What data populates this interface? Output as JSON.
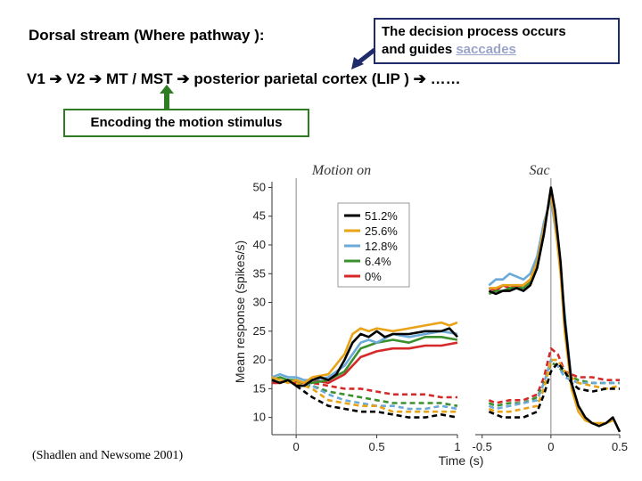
{
  "header": {
    "dorsal_title": "Dorsal stream (Where pathway ):",
    "decision_line1": "The decision process occurs",
    "decision_line2_prefix": "and guides ",
    "decision_link": "saccades"
  },
  "pathway": {
    "items": [
      "V1",
      "V2",
      "MT / MST",
      "posterior parietal cortex (LIP )",
      "……"
    ]
  },
  "encoding_label": "Encoding the motion stimulus",
  "citation": "(Shadlen and Newsome 2001)",
  "colors": {
    "box_border": "#1f2b6b",
    "encode_border": "#2e7d22",
    "arrow_green": "#2e7d22",
    "arrow_navy": "#1f2b6b"
  },
  "chart_data": {
    "type": "line",
    "panels": [
      {
        "title": "Motion on",
        "xlim": [
          -0.15,
          1.0
        ],
        "xticks": [
          "0",
          "0.5",
          "1"
        ],
        "xtick_values": [
          0,
          0.5,
          1
        ]
      },
      {
        "title": "Sac",
        "xlim": [
          -0.55,
          0.5
        ],
        "xticks": [
          "-0.5",
          "0",
          "0.5"
        ],
        "xtick_values": [
          -0.5,
          0,
          0.5
        ]
      }
    ],
    "ylabel": "Mean response (spikes/s)",
    "xlabel": "Time (s)",
    "ylim": [
      7,
      51
    ],
    "yticks": [
      10,
      15,
      20,
      25,
      30,
      35,
      40,
      45,
      50
    ],
    "legend_position": "top-left of first panel",
    "series": [
      {
        "name": "51.2%",
        "color": "#000000",
        "in_solid": [
          [
            -0.15,
            16.5
          ],
          [
            -0.1,
            16
          ],
          [
            -0.05,
            16.5
          ],
          [
            0,
            15.5
          ],
          [
            0.05,
            15.5
          ],
          [
            0.1,
            16.5
          ],
          [
            0.15,
            17
          ],
          [
            0.2,
            16.5
          ],
          [
            0.25,
            17.5
          ],
          [
            0.3,
            20
          ],
          [
            0.35,
            23
          ],
          [
            0.4,
            24.5
          ],
          [
            0.45,
            24
          ],
          [
            0.5,
            25
          ],
          [
            0.55,
            24
          ],
          [
            0.6,
            24.5
          ],
          [
            0.7,
            24.5
          ],
          [
            0.8,
            25
          ],
          [
            0.9,
            25
          ],
          [
            0.95,
            25.5
          ],
          [
            1.0,
            24
          ]
        ],
        "in_dashed": [
          [
            0,
            15.5
          ],
          [
            0.05,
            14.5
          ],
          [
            0.1,
            13.5
          ],
          [
            0.2,
            12
          ],
          [
            0.3,
            11.5
          ],
          [
            0.4,
            11
          ],
          [
            0.5,
            11
          ],
          [
            0.6,
            10.5
          ],
          [
            0.7,
            10
          ],
          [
            0.8,
            10
          ],
          [
            0.9,
            10.5
          ],
          [
            1.0,
            10
          ]
        ],
        "sac_solid": [
          [
            -0.45,
            32
          ],
          [
            -0.4,
            31.5
          ],
          [
            -0.35,
            32
          ],
          [
            -0.3,
            32
          ],
          [
            -0.25,
            32.5
          ],
          [
            -0.2,
            32
          ],
          [
            -0.15,
            33
          ],
          [
            -0.1,
            36
          ],
          [
            -0.05,
            42
          ],
          [
            0,
            50
          ],
          [
            0.03,
            46
          ],
          [
            0.07,
            37
          ],
          [
            0.1,
            27
          ],
          [
            0.15,
            16
          ],
          [
            0.2,
            12
          ],
          [
            0.25,
            10
          ],
          [
            0.3,
            9
          ],
          [
            0.35,
            8.5
          ],
          [
            0.4,
            9
          ],
          [
            0.45,
            10
          ],
          [
            0.5,
            7.5
          ]
        ],
        "sac_dashed": [
          [
            -0.45,
            11
          ],
          [
            -0.4,
            10.5
          ],
          [
            -0.35,
            10
          ],
          [
            -0.3,
            10
          ],
          [
            -0.2,
            10
          ],
          [
            -0.1,
            11
          ],
          [
            -0.05,
            14
          ],
          [
            0,
            18
          ],
          [
            0.05,
            19.5
          ],
          [
            0.1,
            18
          ],
          [
            0.15,
            16
          ],
          [
            0.2,
            15
          ],
          [
            0.3,
            14.5
          ],
          [
            0.4,
            15
          ],
          [
            0.5,
            15
          ]
        ]
      },
      {
        "name": "25.6%",
        "color": "#e8a317",
        "in_solid": [
          [
            -0.15,
            17
          ],
          [
            -0.1,
            16.5
          ],
          [
            -0.05,
            16
          ],
          [
            0,
            16.5
          ],
          [
            0.05,
            16
          ],
          [
            0.1,
            17
          ],
          [
            0.2,
            17.5
          ],
          [
            0.3,
            21
          ],
          [
            0.35,
            24.5
          ],
          [
            0.4,
            25.5
          ],
          [
            0.45,
            25
          ],
          [
            0.5,
            25.5
          ],
          [
            0.6,
            25
          ],
          [
            0.7,
            25.5
          ],
          [
            0.8,
            26
          ],
          [
            0.9,
            26.5
          ],
          [
            0.95,
            26
          ],
          [
            1.0,
            26.5
          ]
        ],
        "in_dashed": [
          [
            0,
            16
          ],
          [
            0.1,
            15
          ],
          [
            0.2,
            13
          ],
          [
            0.3,
            12.5
          ],
          [
            0.4,
            12
          ],
          [
            0.5,
            12
          ],
          [
            0.6,
            11
          ],
          [
            0.7,
            11
          ],
          [
            0.8,
            11
          ],
          [
            0.9,
            11
          ],
          [
            1.0,
            11
          ]
        ],
        "sac_solid": [
          [
            -0.45,
            32.5
          ],
          [
            -0.4,
            32.5
          ],
          [
            -0.35,
            33
          ],
          [
            -0.3,
            33
          ],
          [
            -0.2,
            33
          ],
          [
            -0.15,
            34
          ],
          [
            -0.1,
            37
          ],
          [
            -0.05,
            43
          ],
          [
            0,
            49
          ],
          [
            0.03,
            44
          ],
          [
            0.07,
            35
          ],
          [
            0.1,
            25
          ],
          [
            0.15,
            15
          ],
          [
            0.2,
            11
          ],
          [
            0.25,
            9.5
          ],
          [
            0.3,
            9
          ],
          [
            0.4,
            9
          ],
          [
            0.45,
            9.5
          ]
        ],
        "sac_dashed": [
          [
            -0.45,
            11.5
          ],
          [
            -0.4,
            11
          ],
          [
            -0.3,
            11
          ],
          [
            -0.2,
            11.5
          ],
          [
            -0.1,
            12
          ],
          [
            -0.05,
            15
          ],
          [
            0,
            20
          ],
          [
            0.05,
            20
          ],
          [
            0.1,
            18
          ],
          [
            0.2,
            16
          ],
          [
            0.3,
            15.5
          ],
          [
            0.4,
            15
          ],
          [
            0.5,
            15.5
          ]
        ]
      },
      {
        "name": "12.8%",
        "color": "#6aa9d8",
        "in_solid": [
          [
            -0.15,
            17
          ],
          [
            -0.1,
            17.5
          ],
          [
            -0.05,
            17
          ],
          [
            0,
            17
          ],
          [
            0.05,
            16.5
          ],
          [
            0.1,
            16.5
          ],
          [
            0.2,
            17
          ],
          [
            0.3,
            19
          ],
          [
            0.35,
            21
          ],
          [
            0.4,
            23
          ],
          [
            0.45,
            23.5
          ],
          [
            0.5,
            23
          ],
          [
            0.6,
            24.5
          ],
          [
            0.7,
            24
          ],
          [
            0.8,
            24.5
          ],
          [
            0.9,
            25
          ],
          [
            1.0,
            24.5
          ]
        ],
        "in_dashed": [
          [
            0,
            16.5
          ],
          [
            0.1,
            15.5
          ],
          [
            0.2,
            14
          ],
          [
            0.3,
            13
          ],
          [
            0.4,
            12.5
          ],
          [
            0.5,
            12
          ],
          [
            0.6,
            12
          ],
          [
            0.7,
            11.5
          ],
          [
            0.8,
            11.5
          ],
          [
            0.9,
            12
          ],
          [
            1.0,
            11.5
          ]
        ],
        "sac_solid": [
          [
            -0.45,
            33
          ],
          [
            -0.4,
            34
          ],
          [
            -0.35,
            34
          ],
          [
            -0.3,
            35
          ],
          [
            -0.2,
            34
          ],
          [
            -0.15,
            35
          ],
          [
            -0.1,
            38
          ],
          [
            -0.05,
            44
          ],
          [
            0,
            48
          ],
          [
            0.05,
            40
          ],
          [
            0.1,
            28
          ],
          [
            0.15,
            16
          ]
        ],
        "sac_dashed": [
          [
            -0.45,
            12
          ],
          [
            -0.4,
            11.5
          ],
          [
            -0.3,
            12
          ],
          [
            -0.2,
            12.5
          ],
          [
            -0.1,
            13
          ],
          [
            -0.05,
            16
          ],
          [
            0,
            20
          ],
          [
            0.05,
            19
          ],
          [
            0.1,
            17
          ],
          [
            0.2,
            16
          ],
          [
            0.3,
            16
          ],
          [
            0.4,
            16
          ],
          [
            0.5,
            16
          ]
        ]
      },
      {
        "name": "6.4%",
        "color": "#3b8f2e",
        "in_solid": [
          [
            -0.15,
            16.5
          ],
          [
            -0.1,
            17
          ],
          [
            -0.05,
            16.5
          ],
          [
            0,
            16.5
          ],
          [
            0.05,
            16
          ],
          [
            0.1,
            16
          ],
          [
            0.2,
            16.5
          ],
          [
            0.3,
            18
          ],
          [
            0.35,
            20
          ],
          [
            0.4,
            22
          ],
          [
            0.45,
            22.5
          ],
          [
            0.5,
            23
          ],
          [
            0.6,
            23.5
          ],
          [
            0.7,
            23
          ],
          [
            0.8,
            24
          ],
          [
            0.9,
            24
          ],
          [
            1.0,
            23.5
          ]
        ],
        "in_dashed": [
          [
            0,
            16
          ],
          [
            0.1,
            15.5
          ],
          [
            0.2,
            14.5
          ],
          [
            0.3,
            14
          ],
          [
            0.4,
            13.5
          ],
          [
            0.5,
            13
          ],
          [
            0.6,
            12.5
          ],
          [
            0.7,
            12.5
          ],
          [
            0.8,
            12.5
          ],
          [
            0.9,
            12.5
          ],
          [
            1.0,
            12
          ]
        ],
        "sac_solid": [
          [
            -0.45,
            31.5
          ],
          [
            -0.4,
            32
          ],
          [
            -0.35,
            32
          ],
          [
            -0.3,
            32.5
          ],
          [
            -0.2,
            32.5
          ],
          [
            -0.15,
            33.5
          ],
          [
            -0.1,
            36
          ],
          [
            -0.05,
            42
          ]
        ],
        "sac_dashed": [
          [
            -0.45,
            12.5
          ],
          [
            -0.4,
            12
          ],
          [
            -0.3,
            12.5
          ],
          [
            -0.2,
            12.5
          ],
          [
            -0.1,
            13.5
          ],
          [
            -0.05,
            16
          ],
          [
            0,
            19.5
          ],
          [
            0.05,
            19
          ],
          [
            0.1,
            17.5
          ],
          [
            0.2,
            16.5
          ],
          [
            0.3,
            16
          ],
          [
            0.4,
            16
          ],
          [
            0.5,
            16
          ]
        ]
      },
      {
        "name": "0%",
        "color": "#d62828",
        "in_solid": [
          [
            -0.15,
            16
          ],
          [
            -0.1,
            16
          ],
          [
            -0.05,
            16.5
          ],
          [
            0,
            16
          ],
          [
            0.05,
            16
          ],
          [
            0.1,
            16.5
          ],
          [
            0.2,
            16
          ],
          [
            0.3,
            17.5
          ],
          [
            0.35,
            19
          ],
          [
            0.4,
            20.5
          ],
          [
            0.45,
            21
          ],
          [
            0.5,
            21.5
          ],
          [
            0.6,
            22
          ],
          [
            0.7,
            22
          ],
          [
            0.8,
            22.5
          ],
          [
            0.9,
            22.5
          ],
          [
            1.0,
            23
          ]
        ],
        "in_dashed": [
          [
            0,
            16
          ],
          [
            0.1,
            16
          ],
          [
            0.2,
            15.5
          ],
          [
            0.3,
            15
          ],
          [
            0.4,
            15
          ],
          [
            0.5,
            14.5
          ],
          [
            0.6,
            14
          ],
          [
            0.7,
            14
          ],
          [
            0.8,
            14
          ],
          [
            0.9,
            13.5
          ],
          [
            1.0,
            13.5
          ]
        ],
        "sac_solid": [
          [
            -0.45,
            32.5
          ],
          [
            -0.4,
            32
          ],
          [
            -0.35,
            33
          ],
          [
            -0.3,
            32.5
          ],
          [
            -0.2,
            33
          ],
          [
            -0.15,
            34
          ]
        ],
        "sac_dashed": [
          [
            -0.45,
            13
          ],
          [
            -0.4,
            12.5
          ],
          [
            -0.3,
            13
          ],
          [
            -0.2,
            13
          ],
          [
            -0.1,
            14
          ],
          [
            -0.05,
            17
          ],
          [
            0,
            22
          ],
          [
            0.05,
            21
          ],
          [
            0.1,
            18
          ],
          [
            0.2,
            17
          ],
          [
            0.3,
            17
          ],
          [
            0.4,
            16.5
          ],
          [
            0.5,
            16.5
          ]
        ]
      }
    ]
  }
}
